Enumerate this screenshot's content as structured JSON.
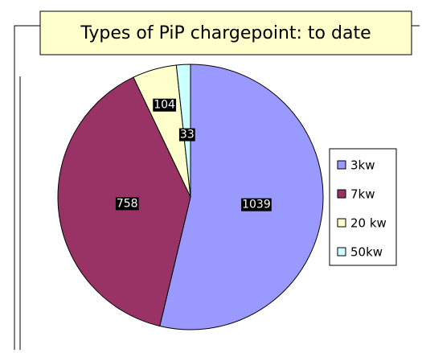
{
  "chart_data": {
    "type": "pie",
    "title": "Types of PiP chargepoint: to date",
    "categories": [
      "3kw",
      "7kw",
      "20 kw",
      "50kw"
    ],
    "values": [
      1039,
      758,
      104,
      33
    ],
    "colors": [
      "#9999ff",
      "#993366",
      "#ffffcc",
      "#ccffff"
    ],
    "legend": "right"
  }
}
